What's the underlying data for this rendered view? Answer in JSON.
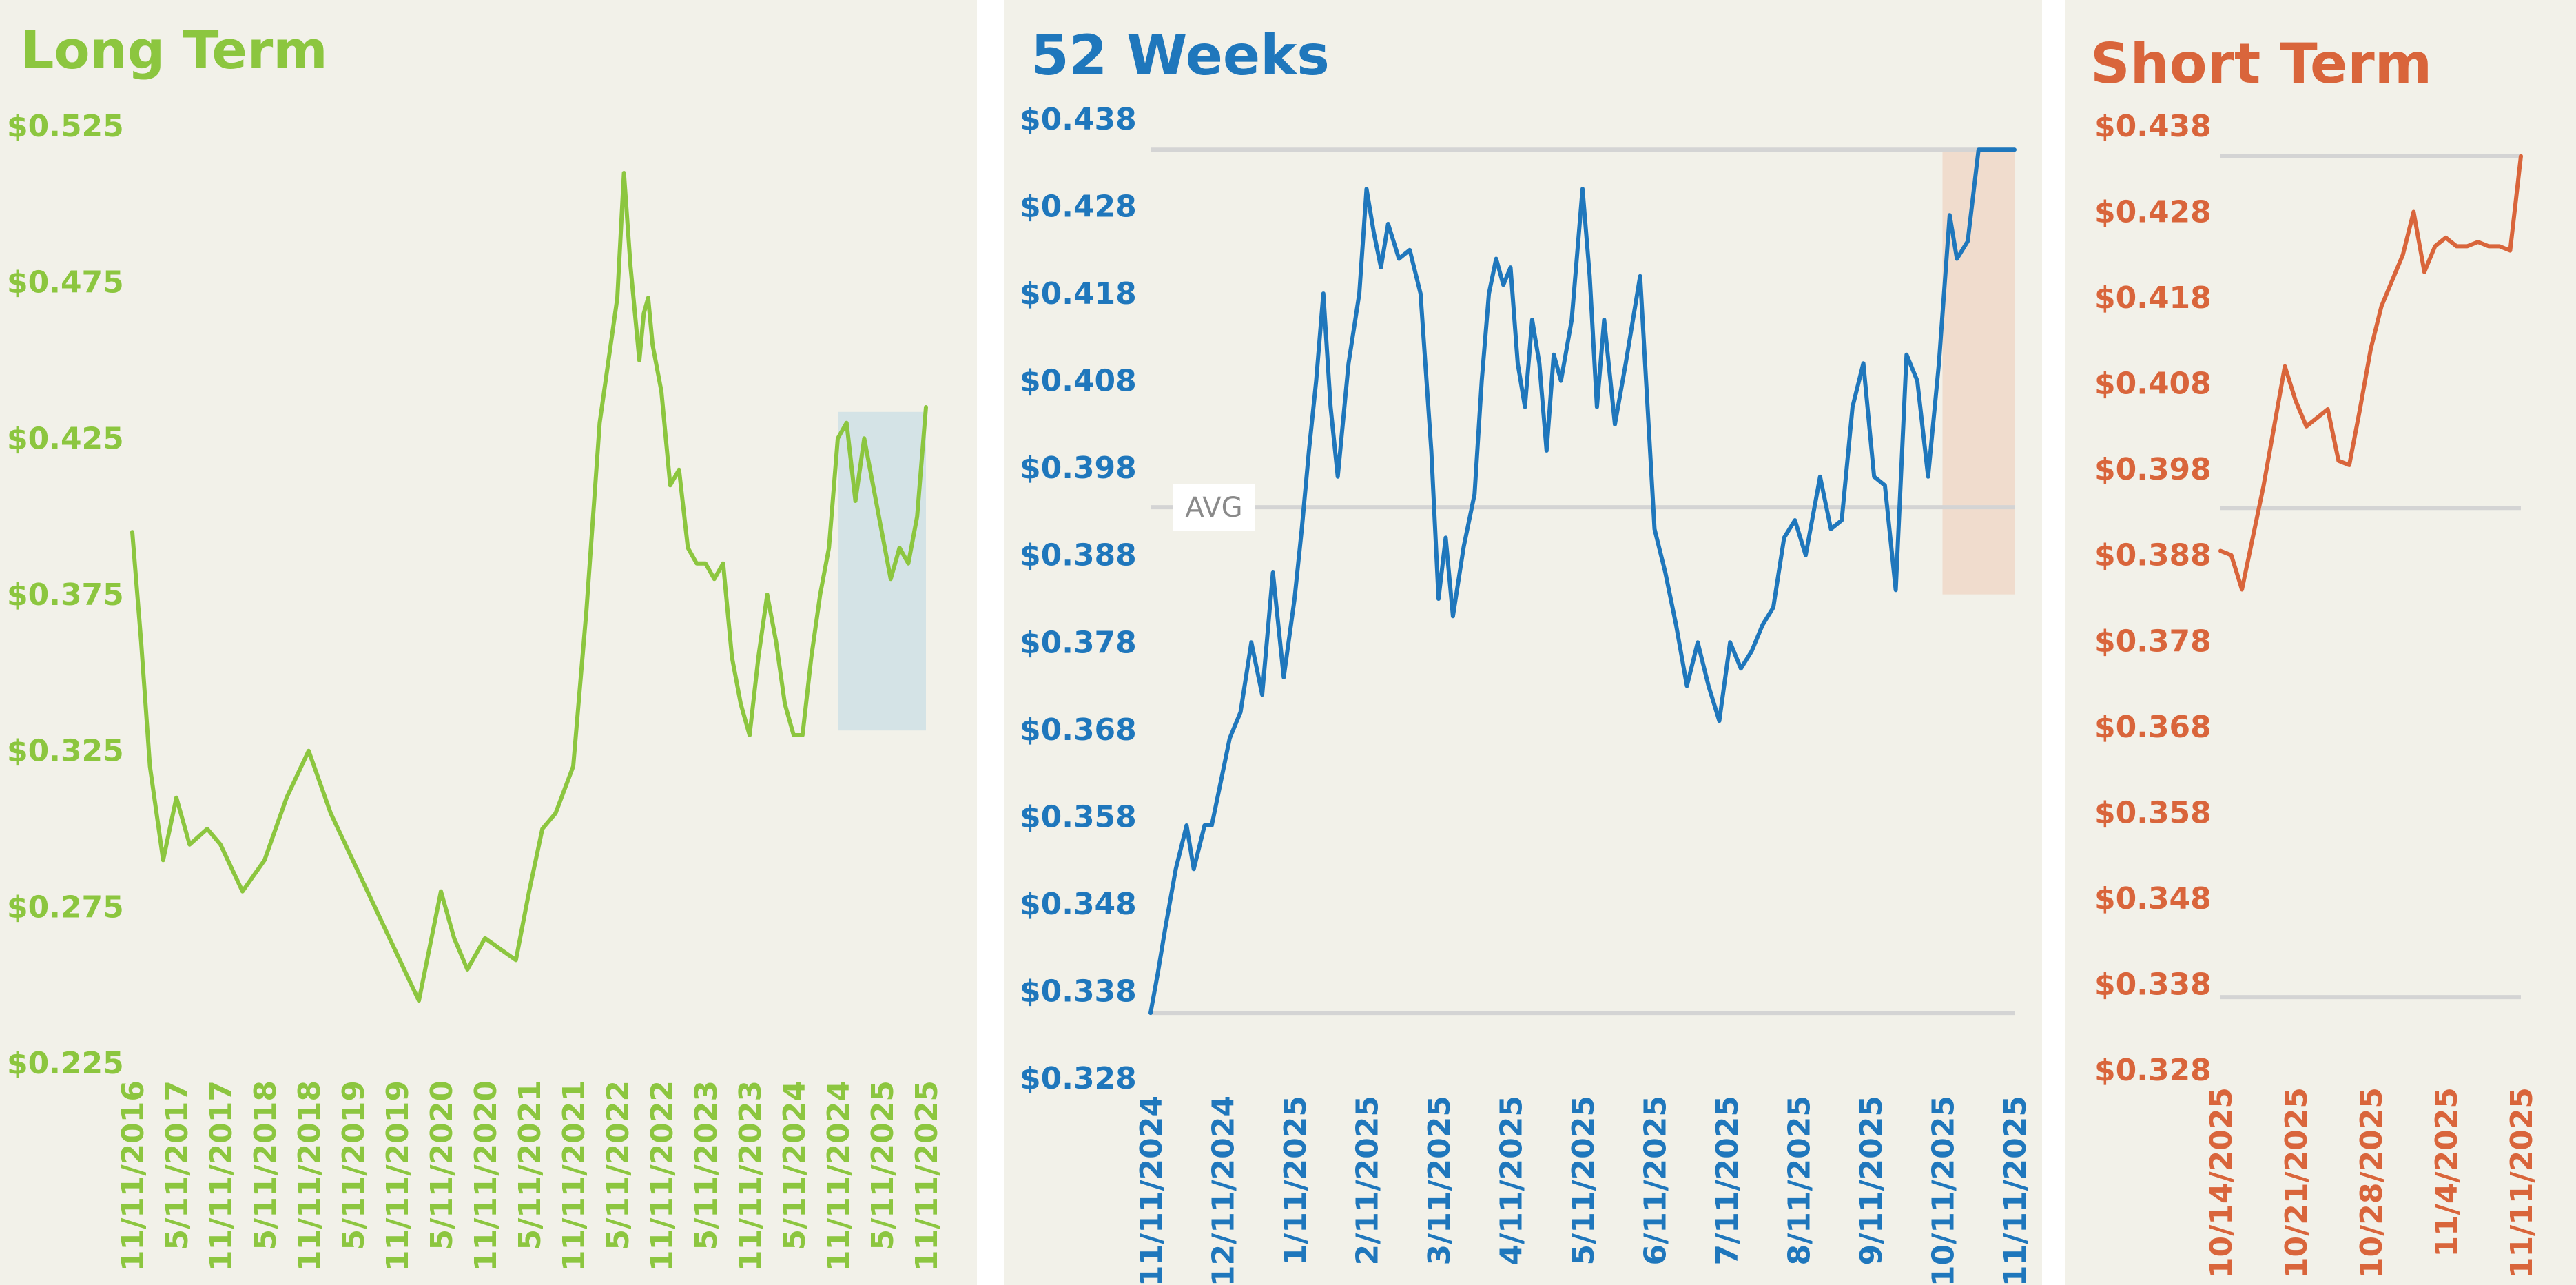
{
  "colors": {
    "long": "#8cc63f",
    "weeks": "#1f77bc",
    "short": "#d9653b",
    "background": "#f2f1e9",
    "gridline": "#d4d4d4",
    "avg_label_bg": "#ffffff",
    "avg_label_text": "#8a8a8a",
    "highlight_long": "#d4e3e6",
    "highlight_weeks": "#f0dccd"
  },
  "chart_data": [
    {
      "type": "line",
      "title": "Long Term",
      "y_ticks": [
        "$0.525",
        "$0.475",
        "$0.425",
        "$0.375",
        "$0.325",
        "$0.275",
        "$0.225"
      ],
      "ylim": [
        0.225,
        0.525
      ],
      "x_ticks": [
        "11/11/2016",
        "5/11/2017",
        "11/11/2017",
        "5/11/2018",
        "11/11/2018",
        "5/11/2019",
        "11/11/2019",
        "5/11/2020",
        "11/11/2020",
        "5/11/2021",
        "11/11/2021",
        "5/11/2022",
        "11/11/2022",
        "5/11/2023",
        "11/11/2023",
        "5/11/2024",
        "11/11/2024",
        "5/11/2025",
        "11/11/2025"
      ],
      "highlight": {
        "x_from": 16,
        "x_to": 18,
        "y_from": 0.3315,
        "y_to": 0.4335
      },
      "series": [
        {
          "x": [
            0,
            0.2,
            0.4,
            0.7,
            1.0,
            1.3,
            1.7,
            2.0,
            2.5,
            3.0,
            3.5,
            4.0,
            4.5,
            5.0,
            5.5,
            6.0,
            6.5,
            7.0,
            7.3,
            7.6,
            8.0,
            8.3,
            8.7,
            9.0,
            9.3,
            9.6,
            10.0,
            10.3,
            10.6,
            10.8,
            11.0,
            11.15,
            11.3,
            11.5,
            11.6,
            11.7,
            11.8,
            12.0,
            12.2,
            12.4,
            12.6,
            12.8,
            13.0,
            13.2,
            13.4,
            13.6,
            13.8,
            14.0,
            14.2,
            14.4,
            14.6,
            14.8,
            15.0,
            15.2,
            15.4,
            15.6,
            15.8,
            16.0,
            16.2,
            16.4,
            16.6,
            16.8,
            17.0,
            17.2,
            17.4,
            17.6,
            17.8,
            18.0
          ],
          "y": [
            0.395,
            0.36,
            0.32,
            0.29,
            0.31,
            0.295,
            0.3,
            0.295,
            0.28,
            0.29,
            0.31,
            0.325,
            0.305,
            0.29,
            0.275,
            0.26,
            0.245,
            0.28,
            0.265,
            0.255,
            0.265,
            0.262,
            0.258,
            0.28,
            0.3,
            0.305,
            0.32,
            0.37,
            0.43,
            0.45,
            0.47,
            0.51,
            0.48,
            0.45,
            0.465,
            0.47,
            0.455,
            0.44,
            0.41,
            0.415,
            0.39,
            0.385,
            0.385,
            0.38,
            0.385,
            0.355,
            0.34,
            0.33,
            0.355,
            0.375,
            0.36,
            0.34,
            0.33,
            0.33,
            0.355,
            0.375,
            0.39,
            0.425,
            0.43,
            0.405,
            0.425,
            0.41,
            0.395,
            0.38,
            0.39,
            0.385,
            0.4,
            0.435
          ]
        }
      ]
    },
    {
      "type": "line",
      "title": "52 Weeks",
      "y_ticks": [
        "$0.438",
        "$0.428",
        "$0.418",
        "$0.408",
        "$0.398",
        "$0.388",
        "$0.378",
        "$0.368",
        "$0.358",
        "$0.348",
        "$0.338",
        "$0.328"
      ],
      "ylim": [
        0.328,
        0.438
      ],
      "x_ticks": [
        "11/11/2024",
        "12/11/2024",
        "1/11/2025",
        "2/11/2025",
        "3/11/2025",
        "4/11/2025",
        "5/11/2025",
        "6/11/2025",
        "7/11/2025",
        "8/11/2025",
        "9/11/2025",
        "10/11/2025",
        "11/11/2025"
      ],
      "reference_lines": {
        "max": 0.4345,
        "avg": 0.3935,
        "min": 0.3355
      },
      "avg_label": "AVG",
      "highlight": {
        "x_from": 11.0,
        "x_to": 12.0,
        "y_from": 0.3835,
        "y_to": 0.4345
      },
      "series": [
        {
          "x": [
            0.0,
            0.1,
            0.2,
            0.35,
            0.5,
            0.6,
            0.75,
            0.85,
            1.0,
            1.1,
            1.25,
            1.4,
            1.55,
            1.7,
            1.85,
            2.0,
            2.1,
            2.2,
            2.3,
            2.4,
            2.5,
            2.6,
            2.75,
            2.9,
            3.0,
            3.1,
            3.2,
            3.3,
            3.45,
            3.6,
            3.75,
            3.9,
            4.0,
            4.1,
            4.2,
            4.35,
            4.5,
            4.6,
            4.7,
            4.8,
            4.9,
            5.0,
            5.1,
            5.2,
            5.3,
            5.4,
            5.5,
            5.6,
            5.7,
            5.85,
            6.0,
            6.1,
            6.2,
            6.3,
            6.45,
            6.6,
            6.8,
            7.0,
            7.15,
            7.3,
            7.45,
            7.6,
            7.75,
            7.9,
            8.05,
            8.2,
            8.35,
            8.5,
            8.65,
            8.8,
            8.95,
            9.1,
            9.3,
            9.45,
            9.6,
            9.75,
            9.9,
            10.05,
            10.2,
            10.35,
            10.5,
            10.65,
            10.8,
            10.95,
            11.1,
            11.2,
            11.35,
            11.5,
            11.65,
            11.8,
            11.9,
            12.0
          ],
          "y": [
            0.3355,
            0.34,
            0.345,
            0.352,
            0.357,
            0.352,
            0.357,
            0.357,
            0.363,
            0.367,
            0.37,
            0.378,
            0.372,
            0.386,
            0.374,
            0.383,
            0.391,
            0.4,
            0.408,
            0.418,
            0.405,
            0.397,
            0.41,
            0.418,
            0.43,
            0.425,
            0.421,
            0.426,
            0.422,
            0.423,
            0.418,
            0.4,
            0.383,
            0.39,
            0.381,
            0.389,
            0.395,
            0.408,
            0.418,
            0.422,
            0.419,
            0.421,
            0.41,
            0.405,
            0.415,
            0.41,
            0.4,
            0.411,
            0.408,
            0.415,
            0.43,
            0.42,
            0.405,
            0.415,
            0.403,
            0.41,
            0.42,
            0.391,
            0.386,
            0.38,
            0.373,
            0.378,
            0.373,
            0.369,
            0.378,
            0.375,
            0.377,
            0.38,
            0.382,
            0.39,
            0.392,
            0.388,
            0.397,
            0.391,
            0.392,
            0.405,
            0.41,
            0.397,
            0.396,
            0.384,
            0.411,
            0.408,
            0.397,
            0.41,
            0.427,
            0.422,
            0.424,
            0.4345,
            0.4345,
            0.4345,
            0.4345,
            0.4345
          ]
        }
      ]
    },
    {
      "type": "line",
      "title": "Short Term",
      "y_ticks": [
        "$0.438",
        "$0.428",
        "$0.418",
        "$0.408",
        "$0.398",
        "$0.388",
        "$0.378",
        "$0.368",
        "$0.358",
        "$0.348",
        "$0.338",
        "$0.328"
      ],
      "ylim": [
        0.328,
        0.438
      ],
      "x_ticks": [
        "10/14/2025",
        "10/21/2025",
        "10/28/2025",
        "11/4/2025",
        "11/11/2025"
      ],
      "reference_lines": {
        "max": 0.4345,
        "avg": 0.3935,
        "min": 0.3365
      },
      "series": [
        {
          "x": [
            0,
            1,
            2,
            3,
            4,
            5,
            6,
            7,
            8,
            9,
            10,
            11,
            12,
            13,
            14,
            15,
            16,
            17,
            18,
            19,
            20,
            21,
            22,
            23,
            24,
            25,
            26,
            27,
            28
          ],
          "y": [
            0.3885,
            0.388,
            0.384,
            0.39,
            0.396,
            0.403,
            0.41,
            0.406,
            0.403,
            0.404,
            0.405,
            0.399,
            0.3985,
            0.405,
            0.412,
            0.417,
            0.42,
            0.423,
            0.428,
            0.421,
            0.424,
            0.425,
            0.424,
            0.424,
            0.4245,
            0.424,
            0.424,
            0.4235,
            0.4345
          ]
        }
      ]
    }
  ]
}
